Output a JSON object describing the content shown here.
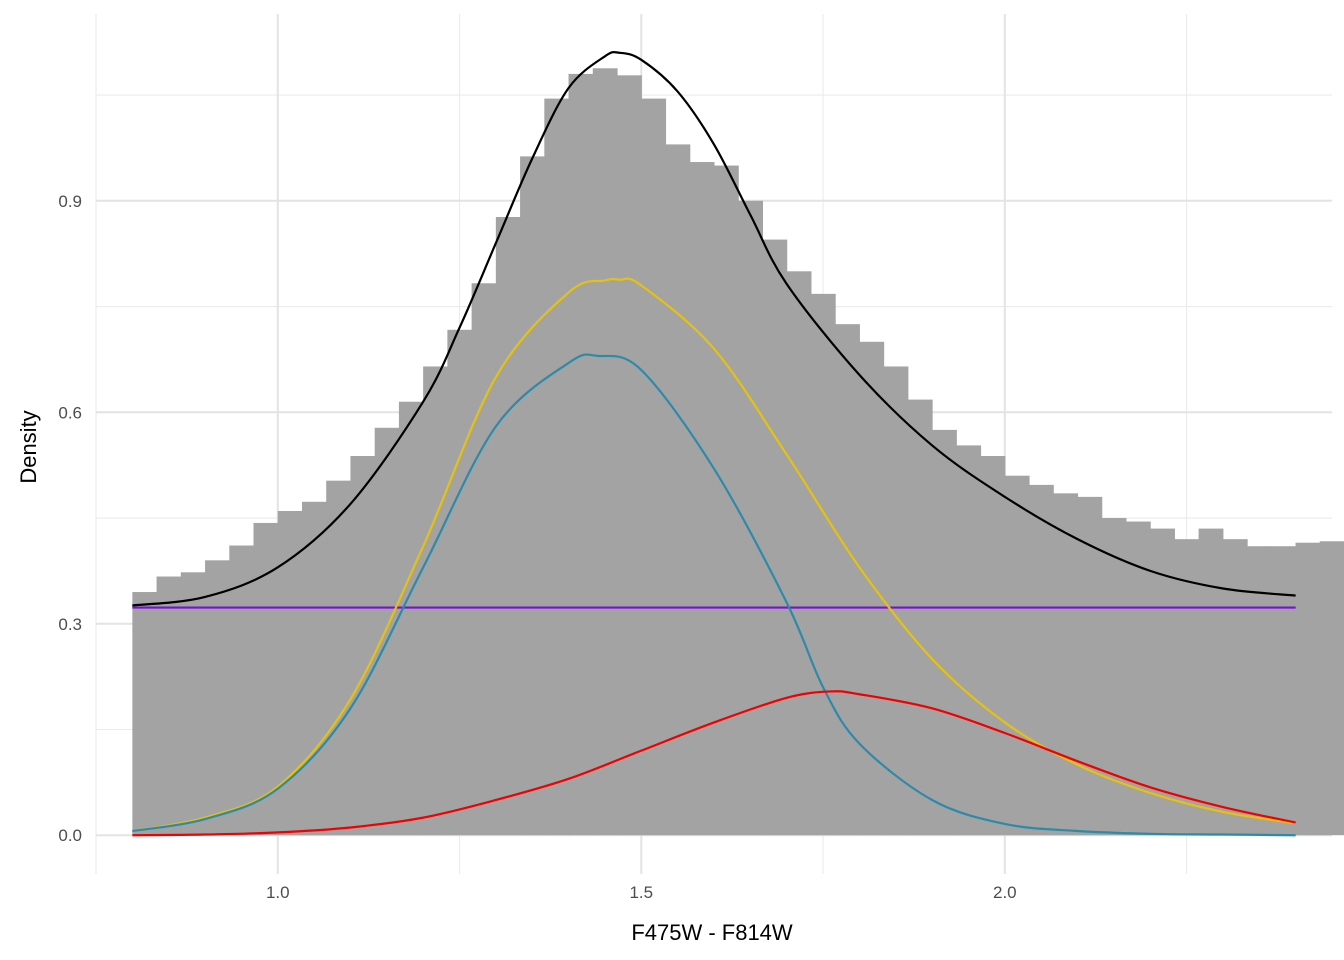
{
  "chart_data": {
    "type": "bar",
    "title": "",
    "xlabel": "F475W - F814W",
    "ylabel": "Density",
    "xlim": [
      0.75,
      2.45
    ],
    "ylim": [
      -0.055,
      1.165
    ],
    "x_ticks": [
      1.0,
      1.5,
      2.0
    ],
    "x_tick_labels": [
      "1.0",
      "1.5",
      "2.0"
    ],
    "x_minor_ticks": [
      0.75,
      1.25,
      1.75,
      2.25
    ],
    "y_ticks": [
      0.0,
      0.3,
      0.6,
      0.9
    ],
    "y_tick_labels": [
      "0.0",
      "0.3",
      "0.6",
      "0.9"
    ],
    "y_minor_ticks": [
      0.15,
      0.45,
      0.75,
      1.05
    ],
    "grid": true,
    "legend": "none",
    "histogram": {
      "x_start": 0.8,
      "bin_width": 0.03333,
      "color": "#a3a3a3",
      "values": [
        0.345,
        0.367,
        0.373,
        0.39,
        0.411,
        0.443,
        0.46,
        0.473,
        0.503,
        0.538,
        0.578,
        0.615,
        0.665,
        0.717,
        0.783,
        0.877,
        0.963,
        1.045,
        1.08,
        1.088,
        1.078,
        1.045,
        0.98,
        0.955,
        0.95,
        0.9,
        0.845,
        0.8,
        0.768,
        0.725,
        0.7,
        0.665,
        0.618,
        0.575,
        0.553,
        0.538,
        0.51,
        0.497,
        0.485,
        0.48,
        0.45,
        0.445,
        0.435,
        0.42,
        0.435,
        0.42,
        0.41,
        0.41,
        0.415,
        0.417
      ]
    },
    "series": [
      {
        "color": "#000000",
        "x": [
          0.8,
          0.9,
          1.0,
          1.1,
          1.2,
          1.25,
          1.3,
          1.35,
          1.4,
          1.45,
          1.47,
          1.5,
          1.55,
          1.6,
          1.65,
          1.7,
          1.8,
          1.9,
          2.0,
          2.1,
          2.2,
          2.3,
          2.4
        ],
        "y": [
          0.326,
          0.338,
          0.38,
          0.47,
          0.615,
          0.72,
          0.84,
          0.96,
          1.06,
          1.105,
          1.11,
          1.1,
          1.055,
          0.98,
          0.88,
          0.782,
          0.653,
          0.553,
          0.48,
          0.42,
          0.375,
          0.35,
          0.34
        ]
      },
      {
        "color": "#7b0fd4",
        "x": [
          0.8,
          2.4
        ],
        "y": [
          0.323,
          0.323
        ]
      },
      {
        "color": "#e5c20f",
        "x": [
          0.8,
          0.9,
          1.0,
          1.1,
          1.2,
          1.3,
          1.4,
          1.45,
          1.47,
          1.5,
          1.6,
          1.7,
          1.8,
          1.9,
          2.0,
          2.1,
          2.2,
          2.3,
          2.4
        ],
        "y": [
          0.006,
          0.025,
          0.069,
          0.193,
          0.41,
          0.65,
          0.77,
          0.787,
          0.788,
          0.78,
          0.69,
          0.54,
          0.38,
          0.25,
          0.16,
          0.1,
          0.06,
          0.033,
          0.017
        ]
      },
      {
        "color": "#2e8aa8",
        "x": [
          0.8,
          0.9,
          1.0,
          1.1,
          1.2,
          1.3,
          1.4,
          1.44,
          1.5,
          1.6,
          1.7,
          1.75,
          1.8,
          1.9,
          2.0,
          2.1,
          2.2,
          2.3,
          2.4
        ],
        "y": [
          0.006,
          0.023,
          0.066,
          0.18,
          0.38,
          0.58,
          0.67,
          0.68,
          0.66,
          0.52,
          0.33,
          0.21,
          0.13,
          0.05,
          0.016,
          0.006,
          0.002,
          0.001,
          0.0
        ]
      },
      {
        "color": "#f00000",
        "x": [
          0.8,
          0.9,
          1.0,
          1.1,
          1.2,
          1.3,
          1.4,
          1.5,
          1.6,
          1.7,
          1.76,
          1.8,
          1.9,
          2.0,
          2.1,
          2.2,
          2.3,
          2.4
        ],
        "y": [
          0.0,
          0.001,
          0.004,
          0.011,
          0.025,
          0.05,
          0.08,
          0.12,
          0.16,
          0.195,
          0.204,
          0.2,
          0.18,
          0.145,
          0.105,
          0.068,
          0.04,
          0.018
        ]
      }
    ]
  }
}
